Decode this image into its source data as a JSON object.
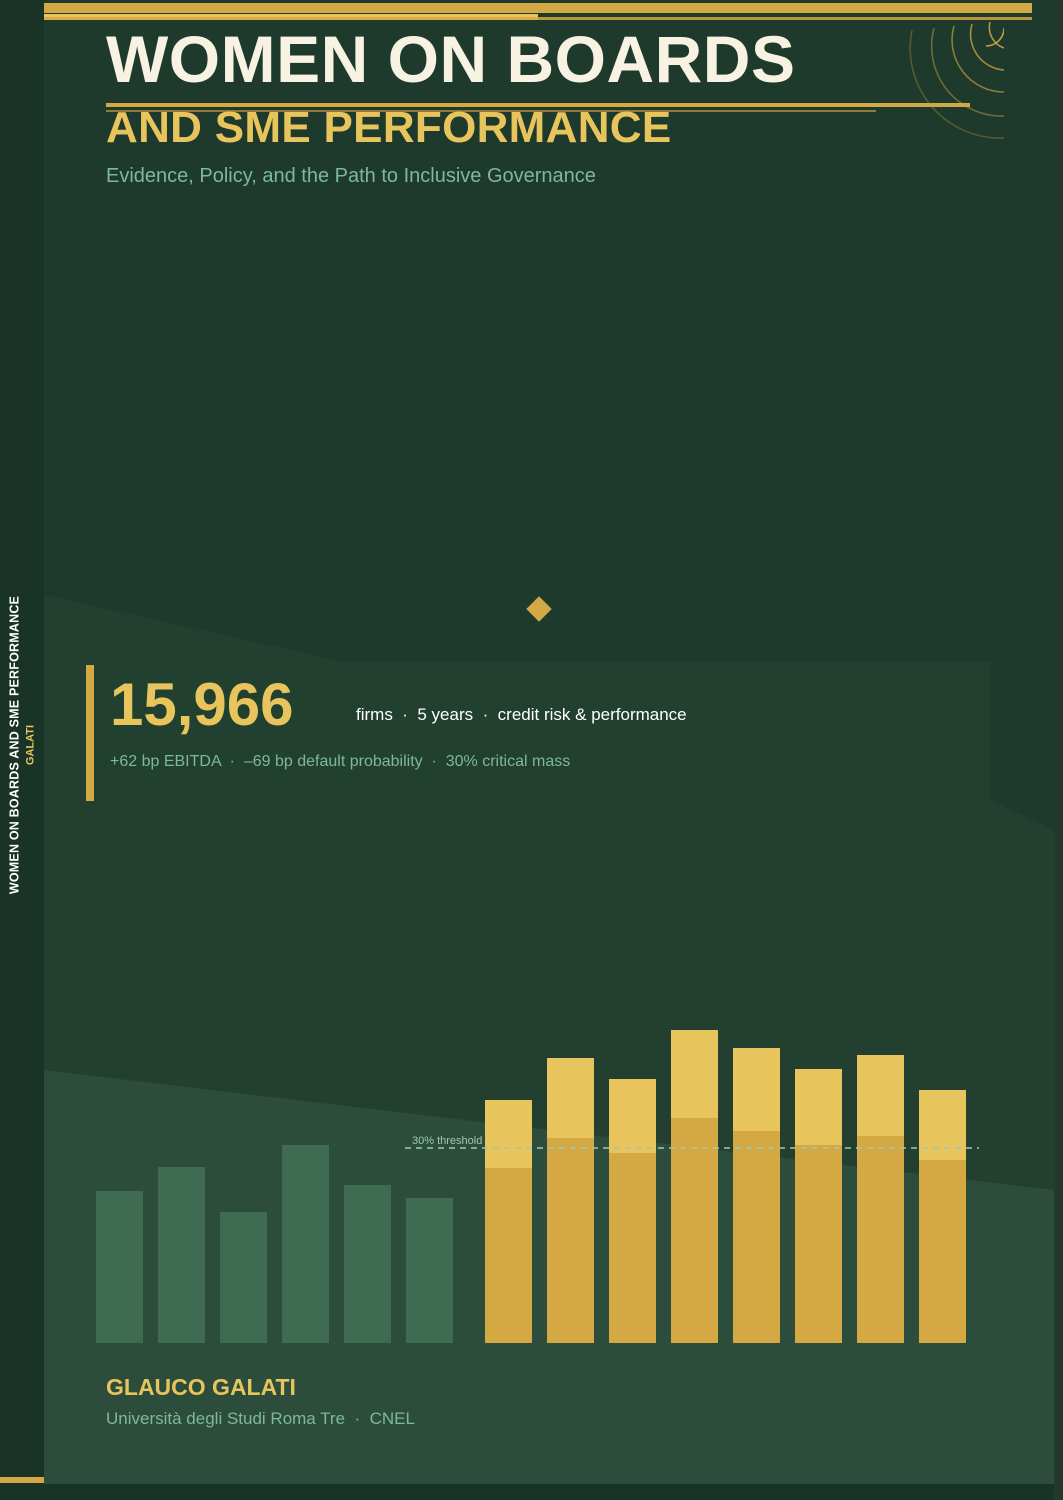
{
  "spine": {
    "title": "WOMEN ON BOARDS AND SME PERFORMANCE",
    "author": "GALATI"
  },
  "cover": {
    "title_line1": "WOMEN ON BOARDS",
    "title_line2": "AND SME PERFORMANCE",
    "subtitle": "Evidence, Policy, and the Path to Inclusive Governance",
    "stat": {
      "number": "15,966",
      "description": "firms  ·  5 years  ·  credit risk & performance",
      "details": "+62 bp EBITDA  ·  –69 bp default probability  ·  30% critical mass"
    },
    "author": "GLAUCO GALATI",
    "affiliation": "Università degli Studi Roma Tre  ·  CNEL"
  },
  "colors": {
    "background": "#1e3a2c",
    "accent_gold": "#d4a843",
    "light_gold": "#e8c55c",
    "muted_green": "#3f6b52",
    "subtitle_green": "#7fb79b"
  },
  "chart_data": {
    "type": "bar",
    "threshold_label": "30% threshold",
    "threshold": 195,
    "ylim": [
      0,
      313
    ],
    "green_bars": [
      152,
      176,
      131,
      198,
      158,
      145
    ],
    "gold_bars": {
      "base": [
        175,
        205,
        190,
        225,
        212,
        198,
        207,
        183
      ],
      "top": [
        243,
        285,
        264,
        313,
        295,
        274,
        288,
        253
      ]
    }
  }
}
